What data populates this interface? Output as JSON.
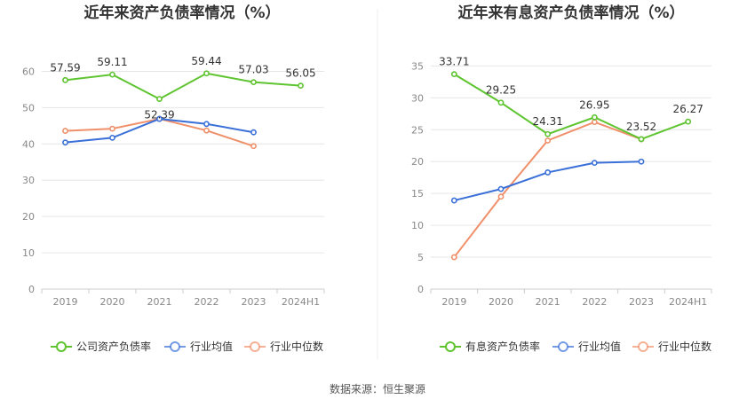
{
  "source": "数据来源：恒生聚源",
  "chart_data": [
    {
      "type": "line",
      "title": "近年来资产负债率情况（%）",
      "categories": [
        "2019",
        "2020",
        "2021",
        "2022",
        "2023",
        "2024H1"
      ],
      "yticks": [
        "0",
        "10",
        "20",
        "30",
        "40",
        "50",
        "60"
      ],
      "ylim": [
        0,
        65
      ],
      "grid": true,
      "legend_position": "bottom",
      "series": [
        {
          "name": "公司资产负债率",
          "color": "#5ec42f",
          "values": [
            57.59,
            59.11,
            52.39,
            59.44,
            57.03,
            56.05
          ],
          "labels": [
            "57.59",
            "59.11",
            "52.39",
            "59.44",
            "57.03",
            "56.05"
          ]
        },
        {
          "name": "行业均值",
          "color": "#3a70d8",
          "values": [
            40.4,
            41.7,
            46.9,
            45.5,
            43.2,
            null
          ]
        },
        {
          "name": "行业中位数",
          "color": "#f0906a",
          "values": [
            43.6,
            44.2,
            46.9,
            43.7,
            39.4,
            null
          ]
        }
      ]
    },
    {
      "type": "line",
      "title": "近年来有息资产负债率情况（%）",
      "categories": [
        "2019",
        "2020",
        "2021",
        "2022",
        "2023",
        "2024H1"
      ],
      "yticks": [
        "0",
        "5",
        "10",
        "15",
        "20",
        "25",
        "30",
        "35"
      ],
      "ylim": [
        0,
        37
      ],
      "grid": true,
      "legend_position": "bottom",
      "series": [
        {
          "name": "有息资产负债率",
          "color": "#5ec42f",
          "values": [
            33.71,
            29.25,
            24.31,
            26.95,
            23.52,
            26.27
          ],
          "labels": [
            "33.71",
            "29.25",
            "24.31",
            "26.95",
            "23.52",
            "26.27"
          ]
        },
        {
          "name": "行业均值",
          "color": "#3a70d8",
          "values": [
            13.9,
            15.7,
            18.3,
            19.8,
            20.0,
            null
          ]
        },
        {
          "name": "行业中位数",
          "color": "#f0906a",
          "values": [
            5.0,
            14.5,
            23.3,
            26.2,
            23.5,
            null
          ]
        }
      ]
    }
  ]
}
